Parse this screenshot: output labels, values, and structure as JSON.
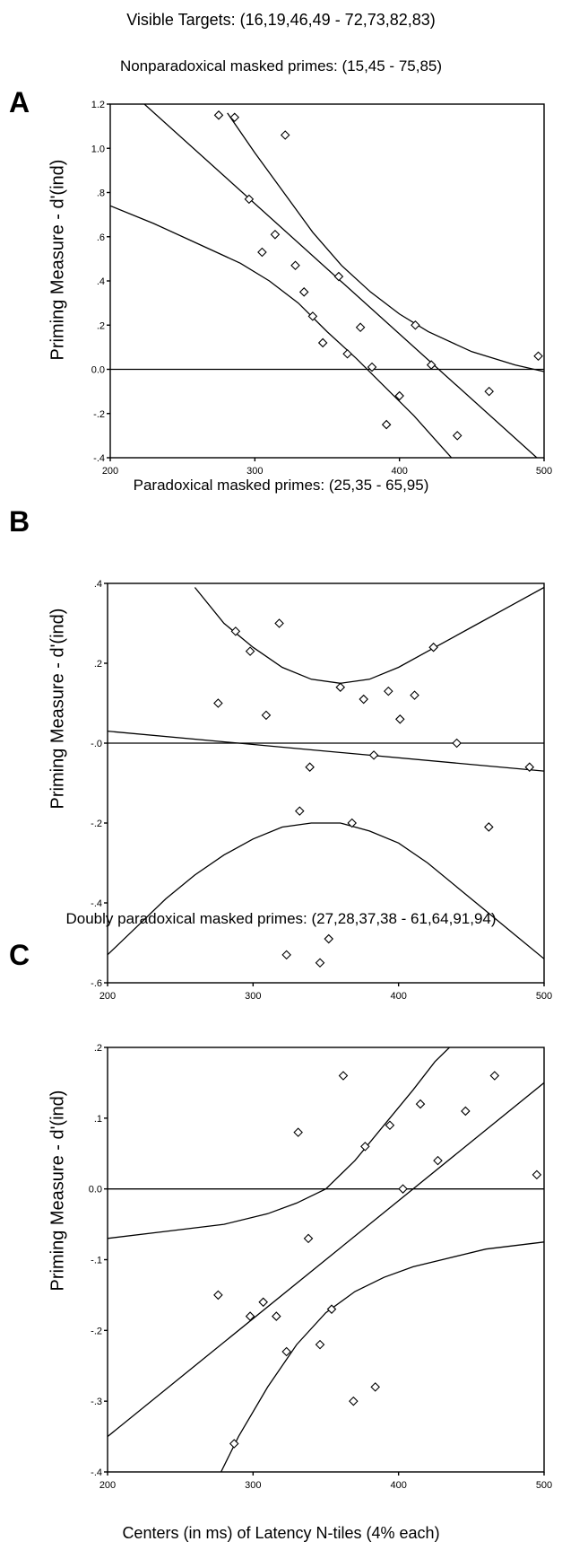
{
  "header": {
    "title": "Visible Targets: (16,19,46,49 - 72,73,82,83)"
  },
  "footer": {
    "xlabel": "Centers (in ms) of Latency N-tiles (4% each)"
  },
  "chart_data": [
    {
      "type": "scatter",
      "panel": "A",
      "title": "Nonparadoxical masked primes: (15,45 - 75,85)",
      "ylabel": "Priming Measure - d'(ind)",
      "xlim": [
        200,
        500
      ],
      "ylim": [
        -0.4,
        1.2
      ],
      "xticks": [
        200,
        300,
        400,
        500
      ],
      "yticks": [
        -0.4,
        -0.2,
        0.0,
        0.2,
        0.4,
        0.6,
        0.8,
        1.0,
        1.2
      ],
      "ytick_labels": [
        "-.4",
        "-.2",
        "0.0",
        ".2",
        ".4",
        ".6",
        ".8",
        "1.0",
        "1.2"
      ],
      "points": [
        [
          275,
          1.15
        ],
        [
          286,
          1.14
        ],
        [
          296,
          0.77
        ],
        [
          305,
          0.53
        ],
        [
          314,
          0.61
        ],
        [
          321,
          1.06
        ],
        [
          328,
          0.47
        ],
        [
          334,
          0.35
        ],
        [
          340,
          0.24
        ],
        [
          347,
          0.12
        ],
        [
          358,
          0.42
        ],
        [
          364,
          0.07
        ],
        [
          373,
          0.19
        ],
        [
          381,
          0.01
        ],
        [
          391,
          -0.25
        ],
        [
          400,
          -0.12
        ],
        [
          411,
          0.2
        ],
        [
          422,
          0.02
        ],
        [
          440,
          -0.3
        ],
        [
          462,
          -0.1
        ],
        [
          496,
          0.06
        ]
      ],
      "regression": [
        [
          210,
          1.28
        ],
        [
          495,
          -0.4
        ]
      ],
      "upper_band": [
        [
          281,
          1.16
        ],
        [
          300,
          0.98
        ],
        [
          320,
          0.8
        ],
        [
          340,
          0.62
        ],
        [
          360,
          0.47
        ],
        [
          380,
          0.35
        ],
        [
          400,
          0.25
        ],
        [
          420,
          0.17
        ],
        [
          450,
          0.08
        ],
        [
          480,
          0.02
        ],
        [
          500,
          -0.01
        ]
      ],
      "lower_band": [
        [
          200,
          0.74
        ],
        [
          230,
          0.66
        ],
        [
          260,
          0.57
        ],
        [
          290,
          0.48
        ],
        [
          310,
          0.4
        ],
        [
          330,
          0.3
        ],
        [
          350,
          0.17
        ],
        [
          370,
          0.05
        ],
        [
          390,
          -0.08
        ],
        [
          410,
          -0.21
        ],
        [
          425,
          -0.32
        ],
        [
          436,
          -0.4
        ]
      ],
      "zero_line": true
    },
    {
      "type": "scatter",
      "panel": "B",
      "title": "Paradoxical masked primes: (25,35 - 65,95)",
      "ylabel": "Priming Measure - d'(ind)",
      "xlim": [
        200,
        500
      ],
      "ylim": [
        -0.6,
        0.4
      ],
      "xticks": [
        200,
        300,
        400,
        500
      ],
      "yticks": [
        -0.6,
        -0.4,
        -0.2,
        0.0,
        0.2,
        0.4
      ],
      "ytick_labels": [
        "-.6",
        "-.4",
        "-.2",
        "-.0",
        ".2",
        ".4"
      ],
      "points": [
        [
          276,
          0.1
        ],
        [
          288,
          0.28
        ],
        [
          298,
          0.23
        ],
        [
          309,
          0.07
        ],
        [
          318,
          0.3
        ],
        [
          323,
          -0.53
        ],
        [
          332,
          -0.17
        ],
        [
          339,
          -0.06
        ],
        [
          346,
          -0.55
        ],
        [
          352,
          -0.49
        ],
        [
          360,
          0.14
        ],
        [
          368,
          -0.2
        ],
        [
          376,
          0.11
        ],
        [
          383,
          -0.03
        ],
        [
          393,
          0.13
        ],
        [
          401,
          0.06
        ],
        [
          411,
          0.12
        ],
        [
          424,
          0.24
        ],
        [
          440,
          0.0
        ],
        [
          462,
          -0.21
        ],
        [
          490,
          -0.06
        ]
      ],
      "regression": [
        [
          200,
          0.03
        ],
        [
          500,
          -0.07
        ]
      ],
      "upper_band": [
        [
          260,
          0.39
        ],
        [
          280,
          0.3
        ],
        [
          300,
          0.24
        ],
        [
          320,
          0.19
        ],
        [
          340,
          0.16
        ],
        [
          360,
          0.15
        ],
        [
          380,
          0.16
        ],
        [
          400,
          0.19
        ],
        [
          420,
          0.23
        ],
        [
          450,
          0.29
        ],
        [
          480,
          0.35
        ],
        [
          500,
          0.39
        ]
      ],
      "lower_band": [
        [
          200,
          -0.53
        ],
        [
          220,
          -0.46
        ],
        [
          240,
          -0.39
        ],
        [
          260,
          -0.33
        ],
        [
          280,
          -0.28
        ],
        [
          300,
          -0.24
        ],
        [
          320,
          -0.21
        ],
        [
          340,
          -0.2
        ],
        [
          360,
          -0.2
        ],
        [
          380,
          -0.22
        ],
        [
          400,
          -0.25
        ],
        [
          420,
          -0.3
        ],
        [
          440,
          -0.36
        ],
        [
          460,
          -0.42
        ],
        [
          480,
          -0.48
        ],
        [
          500,
          -0.54
        ]
      ],
      "zero_line": true
    },
    {
      "type": "scatter",
      "panel": "C",
      "title": "Doubly paradoxical masked primes: (27,28,37,38 - 61,64,91,94)",
      "ylabel": "Priming Measure - d'(ind)",
      "xlim": [
        200,
        500
      ],
      "ylim": [
        -0.4,
        0.2
      ],
      "xticks": [
        200,
        300,
        400,
        500
      ],
      "yticks": [
        -0.4,
        -0.3,
        -0.2,
        -0.1,
        0.0,
        0.1,
        0.2
      ],
      "ytick_labels": [
        "-.4",
        "-.3",
        "-.2",
        "-.1",
        "0.0",
        ".1",
        ".2"
      ],
      "points": [
        [
          276,
          -0.15
        ],
        [
          287,
          -0.36
        ],
        [
          298,
          -0.18
        ],
        [
          307,
          -0.16
        ],
        [
          316,
          -0.18
        ],
        [
          323,
          -0.23
        ],
        [
          331,
          0.08
        ],
        [
          338,
          -0.07
        ],
        [
          346,
          -0.22
        ],
        [
          354,
          -0.17
        ],
        [
          362,
          0.16
        ],
        [
          369,
          -0.3
        ],
        [
          377,
          0.06
        ],
        [
          384,
          -0.28
        ],
        [
          394,
          0.09
        ],
        [
          403,
          0.0
        ],
        [
          415,
          0.12
        ],
        [
          427,
          0.04
        ],
        [
          446,
          0.11
        ],
        [
          466,
          0.16
        ],
        [
          495,
          0.02
        ]
      ],
      "regression": [
        [
          200,
          -0.35
        ],
        [
          500,
          0.15
        ]
      ],
      "upper_band": [
        [
          200,
          -0.07
        ],
        [
          240,
          -0.06
        ],
        [
          280,
          -0.05
        ],
        [
          310,
          -0.035
        ],
        [
          330,
          -0.02
        ],
        [
          350,
          0.0
        ],
        [
          370,
          0.04
        ],
        [
          390,
          0.09
        ],
        [
          410,
          0.14
        ],
        [
          425,
          0.18
        ],
        [
          435,
          0.2
        ]
      ],
      "lower_band": [
        [
          278,
          -0.4
        ],
        [
          290,
          -0.35
        ],
        [
          310,
          -0.28
        ],
        [
          330,
          -0.22
        ],
        [
          350,
          -0.175
        ],
        [
          370,
          -0.145
        ],
        [
          390,
          -0.125
        ],
        [
          410,
          -0.11
        ],
        [
          430,
          -0.1
        ],
        [
          460,
          -0.085
        ],
        [
          500,
          -0.075
        ]
      ],
      "zero_line": true
    }
  ]
}
